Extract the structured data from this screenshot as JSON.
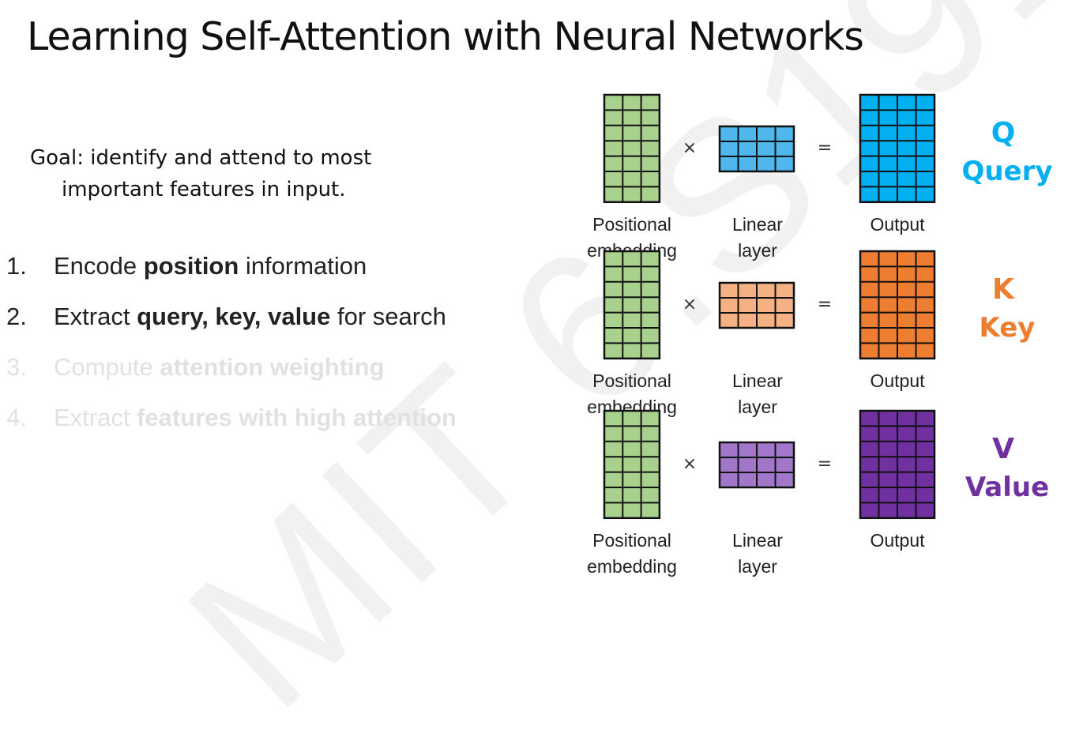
{
  "watermark": "MIT 6.S191",
  "title": "Learning Self-Attention with Neural Networks",
  "goal": {
    "label": "Goal:",
    "text1": "identify and attend to most",
    "text2": "important features in input."
  },
  "steps": [
    {
      "num": "1.",
      "parts": [
        {
          "t": "Encode ",
          "b": false
        },
        {
          "t": "position",
          "b": true
        },
        {
          "t": " information",
          "b": false
        }
      ],
      "faded": false
    },
    {
      "num": "2.",
      "parts": [
        {
          "t": "Extract ",
          "b": false
        },
        {
          "t": "query, key, value",
          "b": true
        },
        {
          "t": " for search",
          "b": false
        }
      ],
      "faded": false
    },
    {
      "num": "3.",
      "parts": [
        {
          "t": "Compute ",
          "b": false
        },
        {
          "t": "attention weighting",
          "b": true
        }
      ],
      "faded": true
    },
    {
      "num": "4.",
      "parts": [
        {
          "t": "Extract ",
          "b": false
        },
        {
          "t": "features with high attention",
          "b": true
        }
      ],
      "faded": true
    }
  ],
  "labels": {
    "positional_1": "Positional",
    "positional_2": "embedding",
    "linear_1": "Linear",
    "linear_2": "layer",
    "output": "Output",
    "times": "×",
    "equals": "="
  },
  "rows": [
    {
      "letter": "Q",
      "word": "Query",
      "color": "#00b0f0",
      "linear_color": "#4fb7ec",
      "output_color": "#00b0f0"
    },
    {
      "letter": "K",
      "word": "Key",
      "color": "#ed7d31",
      "linear_color": "#f4b183",
      "output_color": "#ed7d31"
    },
    {
      "letter": "V",
      "word": "Value",
      "color": "#7030a0",
      "linear_color": "#a277c9",
      "output_color": "#7030a0"
    }
  ],
  "colors": {
    "embedding": "#a9d18e",
    "faded_text": "#e1e1e1"
  }
}
